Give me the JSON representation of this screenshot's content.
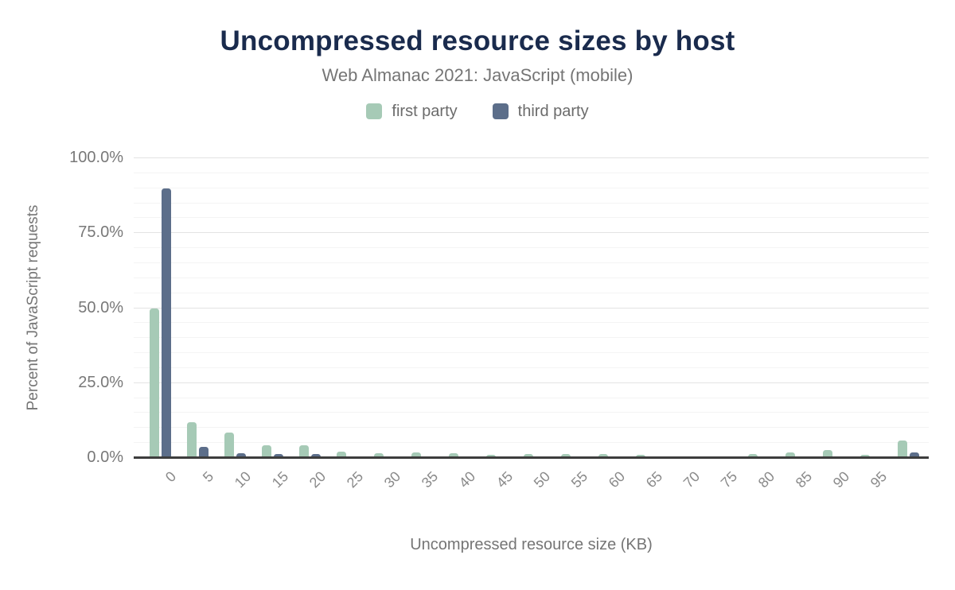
{
  "header": {
    "title": "Uncompressed resource sizes by host",
    "subtitle": "Web Almanac 2021: JavaScript (mobile)"
  },
  "colors": {
    "title": "#1a2b4d",
    "first_party": "#a6cab6",
    "third_party": "#5c6e8a",
    "axis_line": "#3d3d3d",
    "major_gridline": "#e3e3e3",
    "minor_gridline": "#f4f4f4",
    "label_gray": "#757575"
  },
  "chart_data": {
    "type": "bar",
    "title": "Uncompressed resource sizes by host",
    "subtitle": "Web Almanac 2021: JavaScript (mobile)",
    "xlabel": "Uncompressed resource size (KB)",
    "ylabel": "Percent of JavaScript requests",
    "categories": [
      "0",
      "5",
      "10",
      "15",
      "20",
      "25",
      "30",
      "35",
      "40",
      "45",
      "50",
      "55",
      "60",
      "65",
      "70",
      "75",
      "80",
      "85",
      "90",
      "95",
      ""
    ],
    "series": [
      {
        "name": "first party",
        "color": "#a6cab6",
        "values": [
          49.5,
          11.7,
          8.3,
          4.0,
          4.0,
          1.9,
          1.4,
          1.6,
          1.3,
          0.9,
          1.0,
          1.0,
          1.1,
          0.9,
          0.1,
          0.1,
          1.0,
          1.6,
          2.4,
          0.9,
          5.7
        ]
      },
      {
        "name": "third party",
        "color": "#5c6e8a",
        "values": [
          89.7,
          3.4,
          1.2,
          1.1,
          1.1,
          0.1,
          0.1,
          0.1,
          0.1,
          0.1,
          0.1,
          0.1,
          0.1,
          0.1,
          0.1,
          0.1,
          0.1,
          0.1,
          0.1,
          0.1,
          1.5
        ]
      }
    ],
    "ylim": [
      0,
      100
    ],
    "y_ticks": [
      {
        "value": 0,
        "label": "0.0%"
      },
      {
        "value": 25,
        "label": "25.0%"
      },
      {
        "value": 50,
        "label": "50.0%"
      },
      {
        "value": 75,
        "label": "75.0%"
      },
      {
        "value": 100,
        "label": "100.0%"
      }
    ],
    "y_minor_step": 5,
    "grid": true,
    "legend_position": "top",
    "x_tick_rotation": -45
  }
}
